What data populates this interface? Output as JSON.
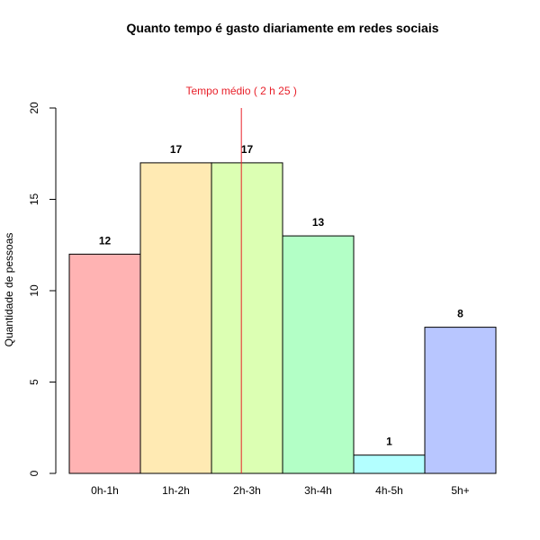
{
  "chart_data": {
    "type": "bar",
    "title": "Quanto tempo é gasto diariamente em redes sociais",
    "xlabel": "",
    "ylabel": "Quantidade de pessoas",
    "categories": [
      "0h-1h",
      "1h-2h",
      "2h-3h",
      "3h-4h",
      "4h-5h",
      "5h+"
    ],
    "values": [
      12,
      17,
      17,
      13,
      1,
      8
    ],
    "bar_colors": [
      "#ffb3b3",
      "#ffeab3",
      "#dcffb3",
      "#b3ffc6",
      "#b3ffff",
      "#b8c6ff"
    ],
    "ylim": [
      0,
      20
    ],
    "yticks": [
      0,
      5,
      10,
      15,
      20
    ],
    "grid": false,
    "mean_line": {
      "label": "Tempo médio ( 2 h 25 )",
      "x_position_in_categories": 2.42,
      "color": "#e8202a"
    }
  }
}
